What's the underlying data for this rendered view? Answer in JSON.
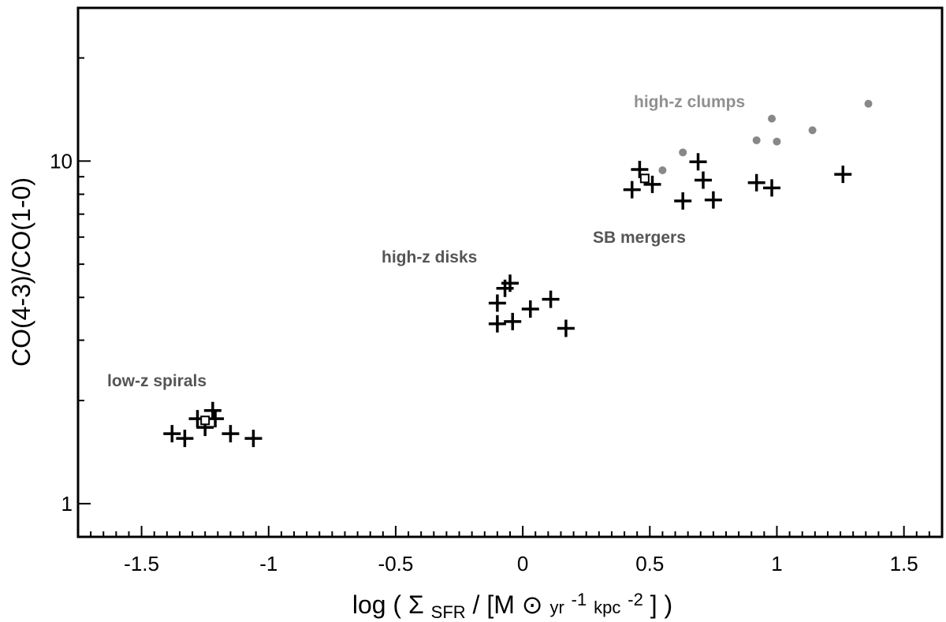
{
  "chart_data": {
    "type": "scatter",
    "title": "",
    "xlim": [
      -1.75,
      1.65
    ],
    "ylim": [
      0.8,
      28
    ],
    "y_scale": "log",
    "grid": false,
    "x_ticks": [
      -1.5,
      -1,
      -0.5,
      0,
      0.5,
      1,
      1.5
    ],
    "x_tick_labels": [
      "-1.5",
      "-1",
      "-0.5",
      "0",
      "0.5",
      "1",
      "1.5"
    ],
    "y_ticks": [
      1,
      10
    ],
    "y_tick_labels": [
      "1",
      "10"
    ],
    "ylabel": "CO(4-3)/CO(1-0)",
    "xlabel": {
      "prefix": "log (",
      "sigma": "Σ",
      "sigma_sub": "SFR",
      "slash": "/ [M",
      "sun": "⊙",
      "yr": " yr",
      "yr_exp": "-1",
      "kpc": " kpc",
      "kpc_exp": "-2",
      "suffix": "] )"
    },
    "colors": {
      "plus": "#000000",
      "dot": "#888888",
      "label_dark": "#555555",
      "label_light": "#909090"
    },
    "groups": [
      {
        "label": "low-z spirals",
        "marker": "plus",
        "points": [
          [
            -1.38,
            1.6
          ],
          [
            -1.33,
            1.55
          ],
          [
            -1.28,
            1.77
          ],
          [
            -1.25,
            1.67
          ],
          [
            -1.22,
            1.87
          ],
          [
            -1.21,
            1.77
          ],
          [
            -1.15,
            1.6
          ],
          [
            -1.06,
            1.55
          ]
        ],
        "open_square": [
          [
            -1.25,
            1.75
          ]
        ]
      },
      {
        "label": "high-z disks",
        "marker": "plus",
        "points": [
          [
            -0.1,
            3.85
          ],
          [
            -0.1,
            3.35
          ],
          [
            -0.07,
            4.25
          ],
          [
            -0.05,
            4.4
          ],
          [
            -0.04,
            3.4
          ],
          [
            0.03,
            3.7
          ],
          [
            0.11,
            3.95
          ],
          [
            0.17,
            3.25
          ]
        ],
        "open_square": []
      },
      {
        "label": "SB mergers",
        "marker": "plus",
        "points": [
          [
            0.43,
            8.25
          ],
          [
            0.46,
            9.45
          ],
          [
            0.51,
            8.55
          ],
          [
            0.63,
            7.65
          ],
          [
            0.69,
            9.95
          ],
          [
            0.71,
            8.8
          ],
          [
            0.75,
            7.7
          ],
          [
            0.92,
            8.65
          ],
          [
            0.98,
            8.35
          ],
          [
            1.26,
            9.15
          ]
        ],
        "open_square": [
          [
            0.48,
            8.9
          ]
        ]
      },
      {
        "label": "high-z clumps",
        "marker": "dot",
        "points": [
          [
            0.55,
            9.4
          ],
          [
            0.63,
            10.6
          ],
          [
            0.92,
            11.5
          ],
          [
            0.98,
            13.3
          ],
          [
            1.0,
            11.4
          ],
          [
            1.14,
            12.3
          ],
          [
            1.36,
            14.7
          ]
        ],
        "open_square": []
      }
    ]
  }
}
